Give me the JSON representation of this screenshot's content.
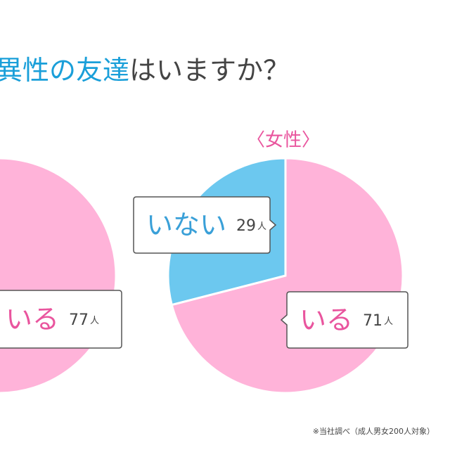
{
  "title_highlight": "異性の友達",
  "title_rest": "はいますか？",
  "chart_data": [
    {
      "type": "pie",
      "categories": [
        "いる"
      ],
      "values": [
        77
      ],
      "colors": [
        "#ffb3d9"
      ],
      "label_colors": [
        "#e9559e"
      ],
      "unit": "人"
    },
    {
      "type": "pie",
      "title": "〈女性〉",
      "categories": [
        "いる",
        "いない"
      ],
      "values": [
        71,
        29
      ],
      "colors": [
        "#ffb3d9",
        "#6cc8ef"
      ],
      "label_colors": [
        "#e9559e",
        "#3aa0d8"
      ],
      "unit": "人"
    }
  ],
  "note": "※当社調べ（成人男女200人対象）"
}
